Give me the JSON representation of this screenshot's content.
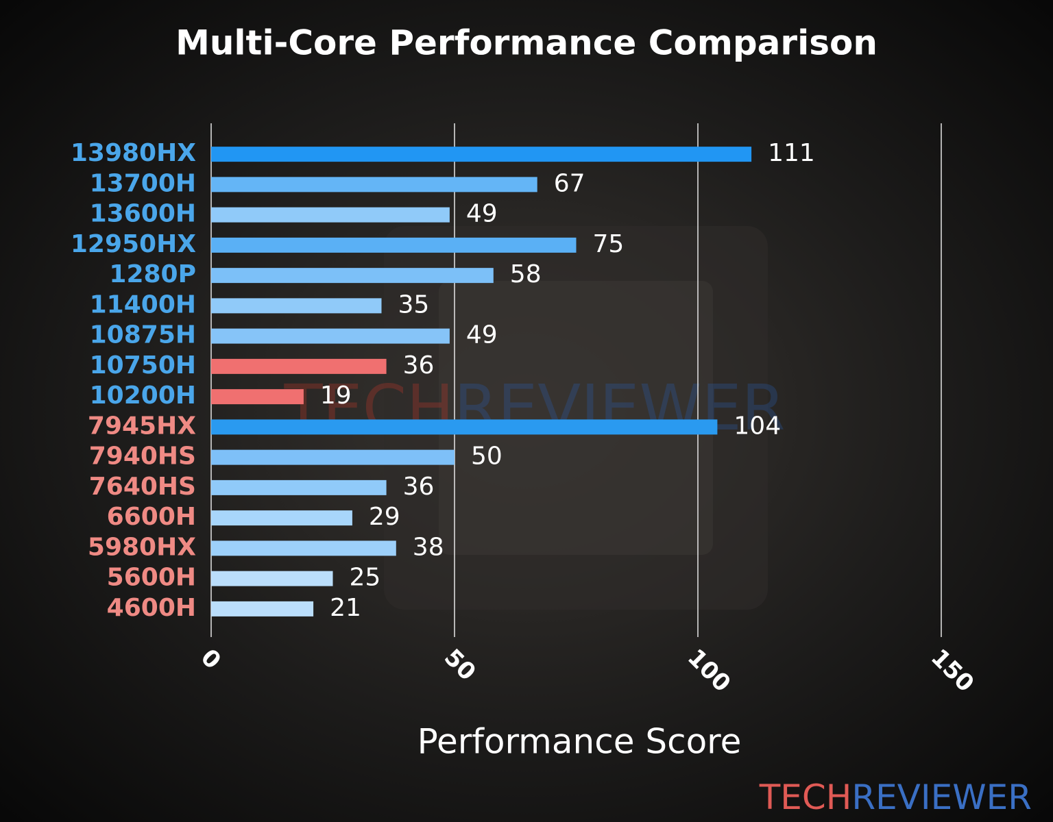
{
  "chart_data": {
    "type": "barh",
    "title": "Multi-Core Performance Comparison",
    "x_label": "Performance Score",
    "categories": [
      "13980HX",
      "13700H",
      "13600H",
      "12950HX",
      "1280P",
      "11400H",
      "10875H",
      "10750H",
      "10200H",
      "7945HX",
      "7940HS",
      "7640HS",
      "6600H",
      "5980HX",
      "5600H",
      "4600H"
    ],
    "category_colors": [
      "#4aa6ea",
      "#4aa6ea",
      "#4aa6ea",
      "#4aa6ea",
      "#4aa6ea",
      "#4aa6ea",
      "#4aa6ea",
      "#4aa6ea",
      "#4aa6ea",
      "#ef8a84",
      "#ef8a84",
      "#ef8a84",
      "#ef8a84",
      "#ef8a84",
      "#ef8a84",
      "#ef8a84"
    ],
    "values": [
      111,
      67,
      49,
      75,
      58,
      35,
      49,
      36,
      19,
      104,
      50,
      36,
      29,
      38,
      25,
      21
    ],
    "colors": [
      "#2196f3",
      "#64b5f6",
      "#90caf9",
      "#5ab0f5",
      "#7cc0f8",
      "#90caf9",
      "#86c4f8",
      "#f07070",
      "#f07070",
      "#2a9af0",
      "#7ec0f8",
      "#90caf9",
      "#a8d6fb",
      "#9dd0fa",
      "#bbdefb",
      "#bbdefb"
    ],
    "xlim": [
      0,
      150
    ],
    "xticks": [
      0,
      50,
      100,
      150
    ],
    "grid": true
  },
  "watermark": {
    "tech": "TECH",
    "reviewer": "REVIEWER"
  }
}
